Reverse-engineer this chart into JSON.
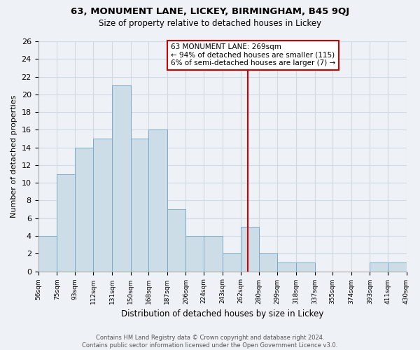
{
  "title": "63, MONUMENT LANE, LICKEY, BIRMINGHAM, B45 9QJ",
  "subtitle": "Size of property relative to detached houses in Lickey",
  "xlabel": "Distribution of detached houses by size in Lickey",
  "ylabel": "Number of detached properties",
  "bar_edges": [
    56,
    75,
    93,
    112,
    131,
    150,
    168,
    187,
    206,
    224,
    243,
    262,
    280,
    299,
    318,
    337,
    355,
    374,
    393,
    411,
    430
  ],
  "bar_heights": [
    4,
    11,
    14,
    15,
    21,
    15,
    16,
    7,
    4,
    4,
    2,
    5,
    2,
    1,
    1,
    0,
    0,
    0,
    1,
    1,
    0
  ],
  "bar_color": "#ccdde8",
  "bar_edge_color": "#7aaac8",
  "property_size": 269,
  "vline_color": "#cc0000",
  "annotation_title": "63 MONUMENT LANE: 269sqm",
  "annotation_line1": "← 94% of detached houses are smaller (115)",
  "annotation_line2": "6% of semi-detached houses are larger (7) →",
  "annotation_box_color": "#ffffff",
  "annotation_box_edge": "#cc0000",
  "ylim": [
    0,
    26
  ],
  "yticks": [
    0,
    2,
    4,
    6,
    8,
    10,
    12,
    14,
    16,
    18,
    20,
    22,
    24,
    26
  ],
  "tick_labels": [
    "56sqm",
    "75sqm",
    "93sqm",
    "112sqm",
    "131sqm",
    "150sqm",
    "168sqm",
    "187sqm",
    "206sqm",
    "224sqm",
    "243sqm",
    "262sqm",
    "280sqm",
    "299sqm",
    "318sqm",
    "337sqm",
    "355sqm",
    "374sqm",
    "393sqm",
    "411sqm",
    "430sqm"
  ],
  "footer_line1": "Contains HM Land Registry data © Crown copyright and database right 2024.",
  "footer_line2": "Contains public sector information licensed under the Open Government Licence v3.0.",
  "grid_color": "#d0dae4",
  "bg_color": "#eef2f6"
}
